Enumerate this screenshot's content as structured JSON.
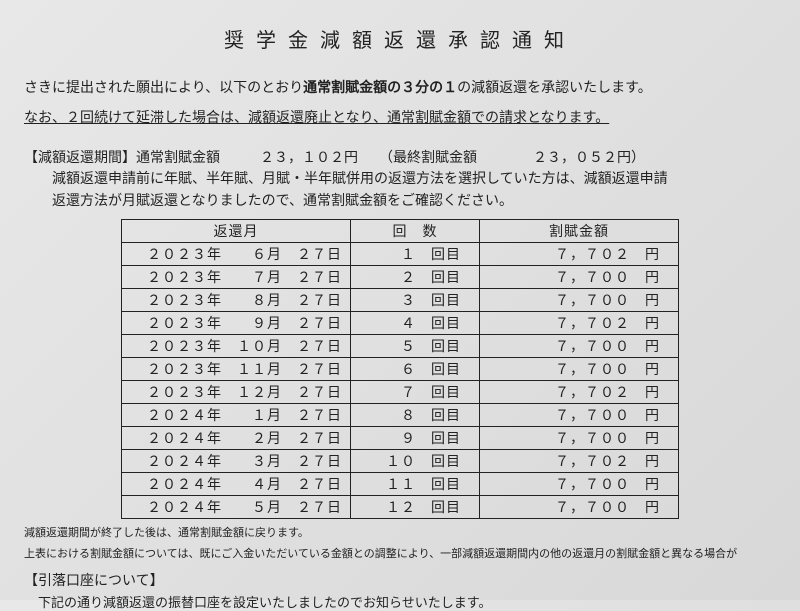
{
  "title": "奨学金減額返還承認通知",
  "intro_part1": "さきに提出された願出により、以下のとおり",
  "intro_bold": "通常割賦金額の３分の１",
  "intro_part2": "の減額返還を承認いたします。",
  "underline": "なお、２回続けて延滞した場合は、減額返還廃止となり、通常割賦金額での請求となります。",
  "period_label": "【減額返還期間】通常割賦金額",
  "normal_amount": "２３，１０２円",
  "final_label": "（最終割賦金額",
  "final_amount": "２３，０５２円）",
  "desc": "減額返還申請前に年賦、半年賦、月賦・半年賦併用の返還方法を選択していた方は、減額返還申請\n返還方法が月賦返還となりましたので、通常割賦金額をご確認ください。",
  "headers": {
    "date": "返還月",
    "count": "回　数",
    "amount": "割賦金額"
  },
  "rows": [
    {
      "date": "２０２３年　　６月　２７日",
      "count": "１　回目",
      "amount": "７，７０２　円"
    },
    {
      "date": "２０２３年　　７月　２７日",
      "count": "２　回目",
      "amount": "７，７００　円"
    },
    {
      "date": "２０２３年　　８月　２７日",
      "count": "３　回目",
      "amount": "７，７００　円"
    },
    {
      "date": "２０２３年　　９月　２７日",
      "count": "４　回目",
      "amount": "７，７０２　円"
    },
    {
      "date": "２０２３年　１０月　２７日",
      "count": "５　回目",
      "amount": "７，７００　円"
    },
    {
      "date": "２０２３年　１１月　２７日",
      "count": "６　回目",
      "amount": "７，７００　円"
    },
    {
      "date": "２０２３年　１２月　２７日",
      "count": "７　回目",
      "amount": "７，７０２　円"
    },
    {
      "date": "２０２４年　　１月　２７日",
      "count": "８　回目",
      "amount": "７，７００　円"
    },
    {
      "date": "２０２４年　　２月　２７日",
      "count": "９　回目",
      "amount": "７，７００　円"
    },
    {
      "date": "２０２４年　　３月　２７日",
      "count": "１０　回目",
      "amount": "７，７０２　円"
    },
    {
      "date": "２０２４年　　４月　２７日",
      "count": "１１　回目",
      "amount": "７，７００　円"
    },
    {
      "date": "２０２４年　　５月　２７日",
      "count": "１２　回目",
      "amount": "７，７００　円"
    }
  ],
  "note1": "減額返還期間が終了した後は、通常割賦金額に戻ります。",
  "note2": "上表における割賦金額については、既にご入金いただいている金額との調整により、一部減額返還期間内の他の返還月の割賦金額と異なる場合が",
  "account_header": "【引落口座について】",
  "account_text": "下記の通り減額返還の振替口座を設定いたしましたのでお知らせいたします。"
}
